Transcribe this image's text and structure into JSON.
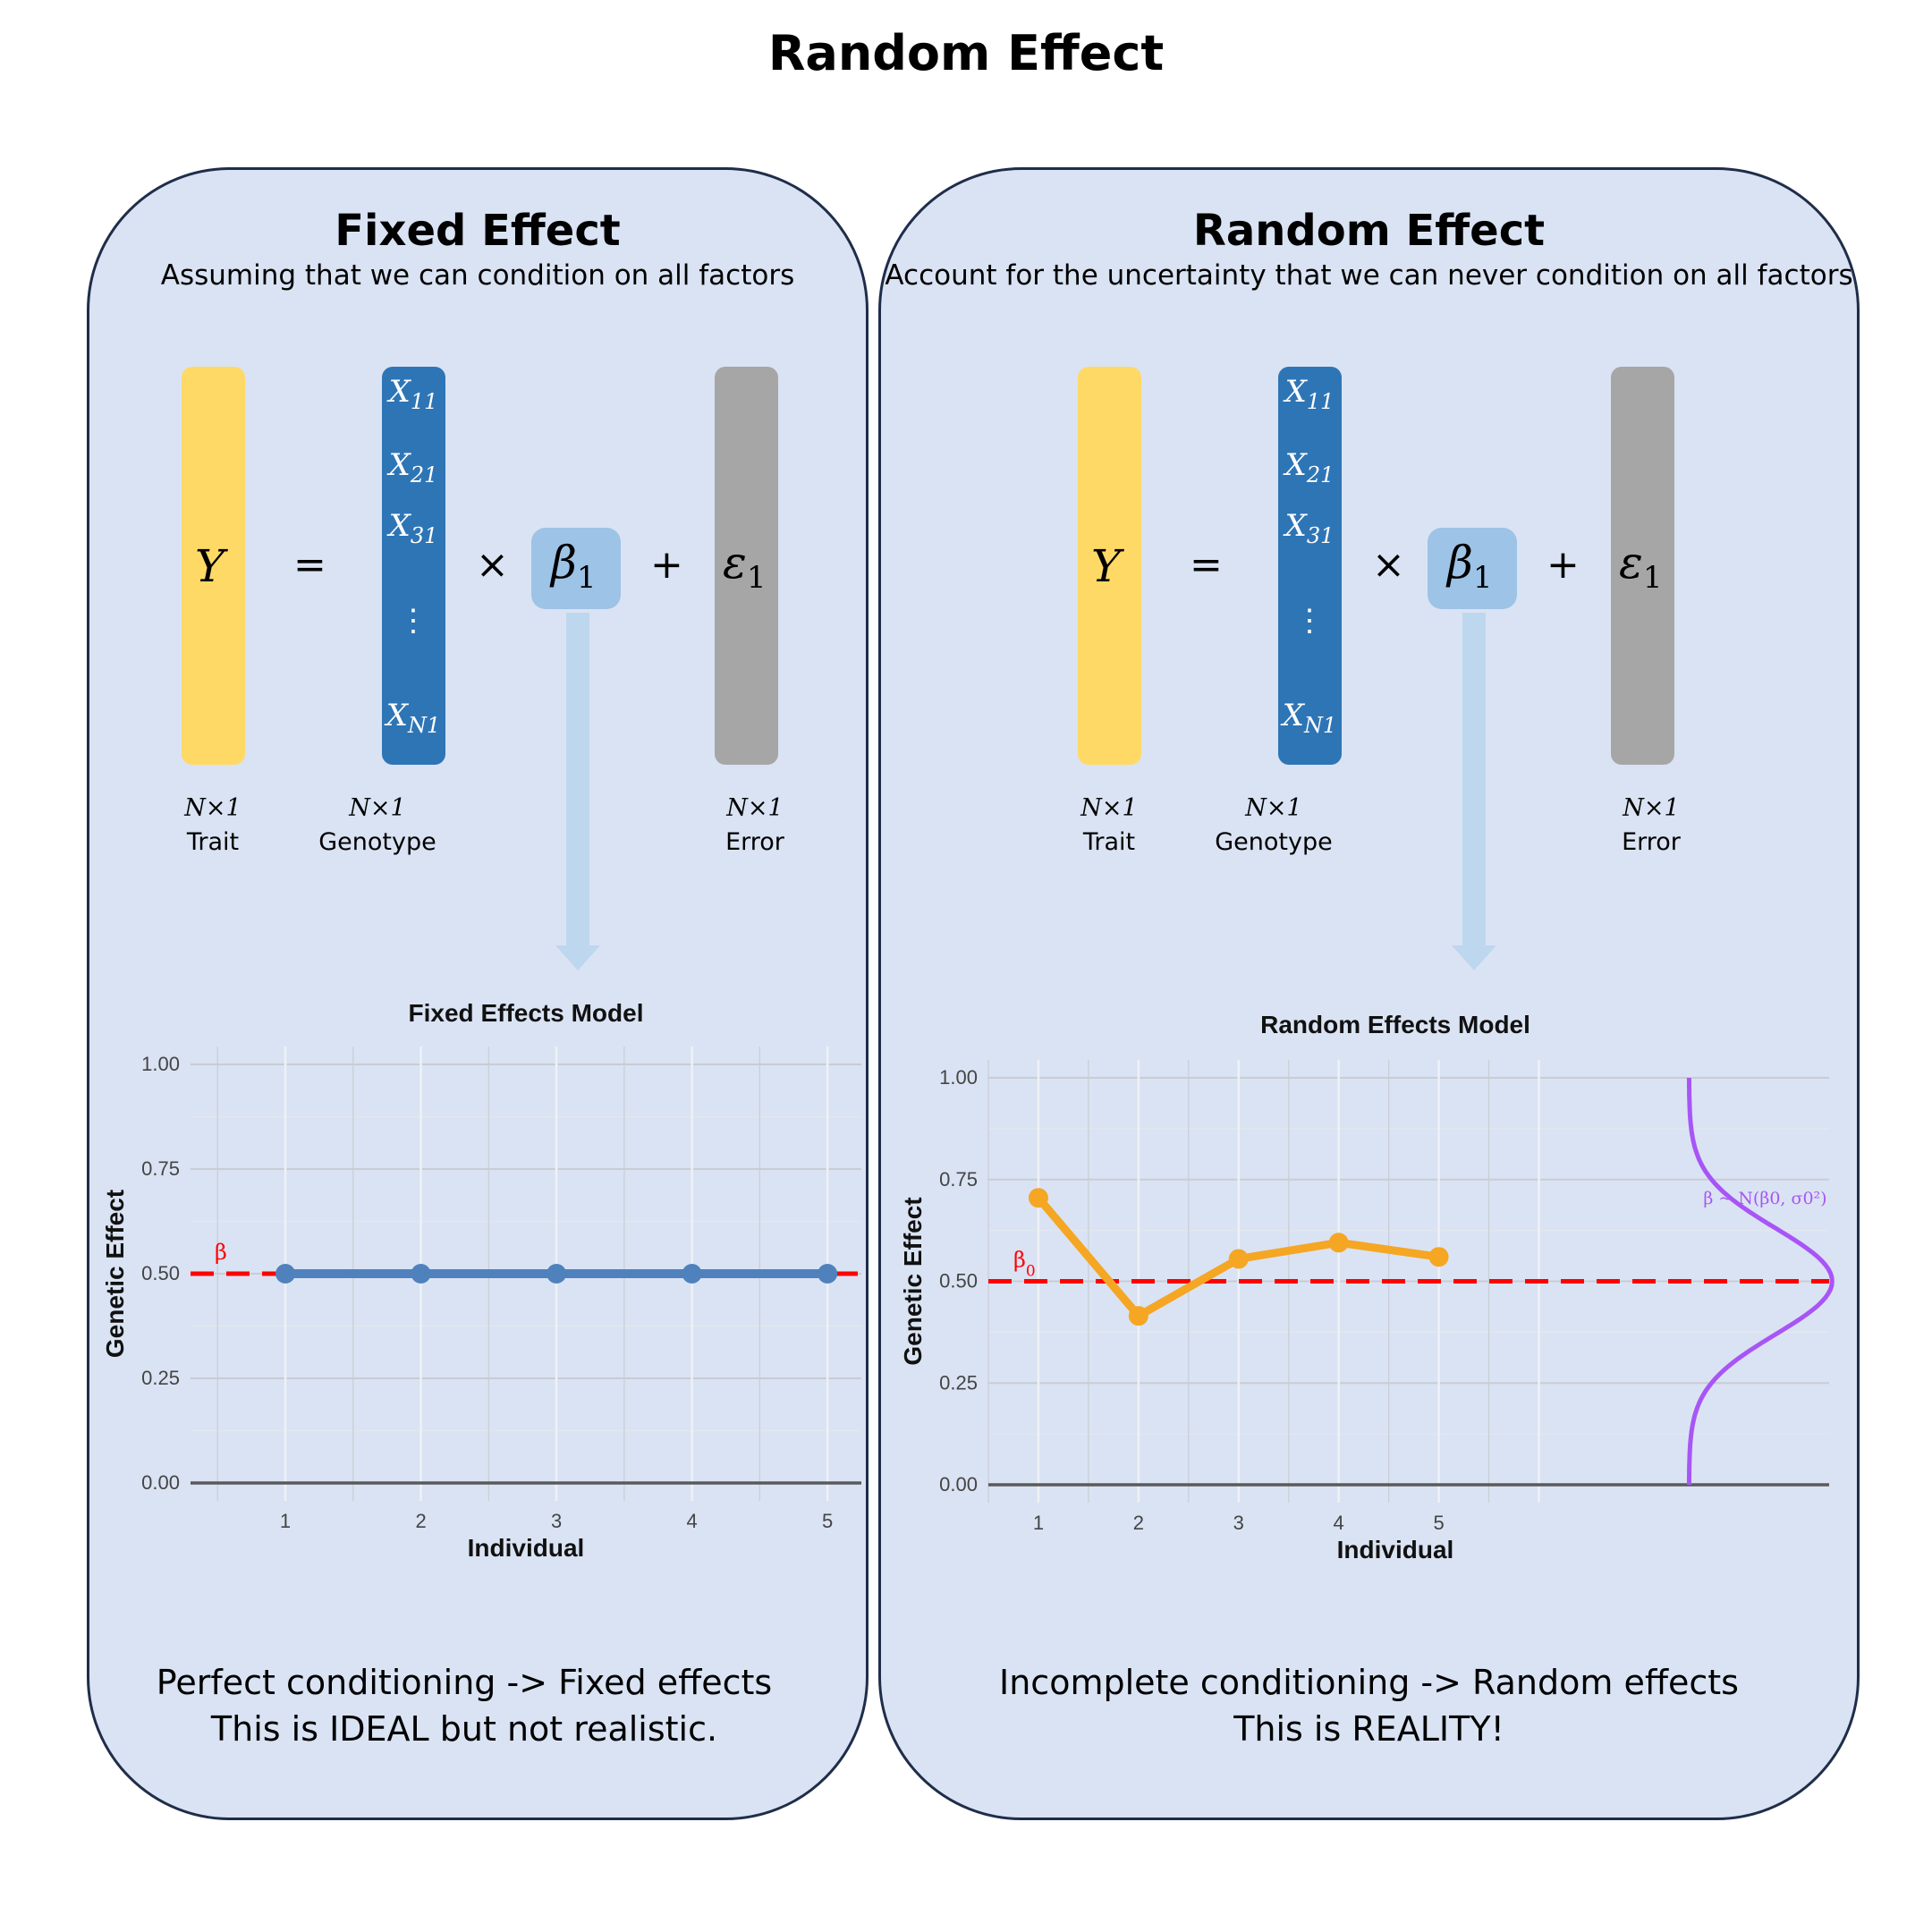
{
  "title": "Random Effect",
  "panels": {
    "fixed": {
      "title": "Fixed Effect",
      "subtitle": "Assuming that we can condition on all factors",
      "equation": {
        "y_symbol": "Y",
        "equals": "=",
        "x_entries": [
          {
            "base": "X",
            "sub": "11"
          },
          {
            "base": "X",
            "sub": "21"
          },
          {
            "base": "X",
            "sub": "31"
          },
          {
            "base": "⋮",
            "sub": ""
          },
          {
            "base": "X",
            "sub": "N1"
          }
        ],
        "times": "×",
        "beta_base": "β",
        "beta_sub": "1",
        "plus": "+",
        "eps_base": "ε",
        "eps_sub": "1"
      },
      "labels": [
        {
          "dim": "N×1",
          "name": "Trait"
        },
        {
          "dim": "N×1",
          "name": "Genotype"
        },
        {
          "dim": "N×1",
          "name": "Error"
        }
      ],
      "conclusion": [
        "Perfect conditioning -> Fixed effects",
        "This is IDEAL but not realistic."
      ]
    },
    "random": {
      "title": "Random Effect",
      "subtitle": "Account for the uncertainty that we can never condition on all factors",
      "equation": {
        "y_symbol": "Y",
        "equals": "=",
        "x_entries": [
          {
            "base": "X",
            "sub": "11"
          },
          {
            "base": "X",
            "sub": "21"
          },
          {
            "base": "X",
            "sub": "31"
          },
          {
            "base": "⋮",
            "sub": ""
          },
          {
            "base": "X",
            "sub": "N1"
          }
        ],
        "times": "×",
        "beta_base": "β",
        "beta_sub": "1",
        "plus": "+",
        "eps_base": "ε",
        "eps_sub": "1"
      },
      "labels": [
        {
          "dim": "N×1",
          "name": "Trait"
        },
        {
          "dim": "N×1",
          "name": "Genotype"
        },
        {
          "dim": "N×1",
          "name": "Error"
        }
      ],
      "conclusion": [
        "Incomplete conditioning -> Random effects",
        "This is REALITY!"
      ]
    }
  },
  "colors": {
    "panel_bg": "#dae3f3",
    "trait": "#ffd966",
    "genotype": "#2e75b6",
    "error": "#a6a6a6",
    "beta_box": "#9dc3e6",
    "fixed_series": "#4f81bd",
    "random_series": "#f5a623",
    "reference_line": "#ff0000",
    "distribution": "#a855f7"
  },
  "chart_data": [
    {
      "type": "line",
      "title": "Fixed Effects Model",
      "xlabel": "Individual",
      "ylabel": "Genetic Effect",
      "x": [
        1,
        2,
        3,
        4,
        5
      ],
      "x_tick_labels": [
        "1",
        "2",
        "3",
        "4",
        "5"
      ],
      "y_ticks": [
        "0.00",
        "0.25",
        "0.50",
        "0.75",
        "1.00"
      ],
      "ylim": [
        0,
        1
      ],
      "xlim": [
        0.3,
        5.25
      ],
      "series": [
        {
          "values": [
            0.5,
            0.5,
            0.5,
            0.5,
            0.5
          ]
        }
      ],
      "reference_line": {
        "y": 0.5,
        "label": "β"
      },
      "grid": true
    },
    {
      "type": "line",
      "title": "Random Effects Model",
      "xlabel": "Individual",
      "ylabel": "Genetic Effect",
      "x": [
        1,
        2,
        3,
        4,
        5
      ],
      "x_tick_labels": [
        "1",
        "2",
        "3",
        "4",
        "5"
      ],
      "y_ticks": [
        "0.00",
        "0.25",
        "0.50",
        "0.75",
        "1.00"
      ],
      "ylim": [
        0,
        1
      ],
      "xlim": [
        0.5,
        8.9
      ],
      "series": [
        {
          "values": [
            0.705,
            0.415,
            0.555,
            0.595,
            0.56
          ]
        }
      ],
      "reference_line": {
        "y": 0.5,
        "label": "β0"
      },
      "distribution": {
        "label": "β ~ N(β0, σ0²)",
        "mean": 0.5,
        "sd": 0.13
      },
      "grid": true
    }
  ]
}
